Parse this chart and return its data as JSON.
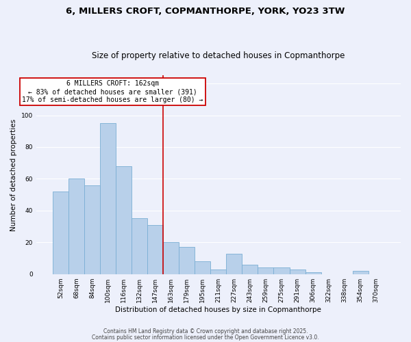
{
  "title1": "6, MILLERS CROFT, COPMANTHORPE, YORK, YO23 3TW",
  "title2": "Size of property relative to detached houses in Copmanthorpe",
  "xlabel": "Distribution of detached houses by size in Copmanthorpe",
  "ylabel": "Number of detached properties",
  "bar_labels": [
    "52sqm",
    "68sqm",
    "84sqm",
    "100sqm",
    "116sqm",
    "132sqm",
    "147sqm",
    "163sqm",
    "179sqm",
    "195sqm",
    "211sqm",
    "227sqm",
    "243sqm",
    "259sqm",
    "275sqm",
    "291sqm",
    "306sqm",
    "322sqm",
    "338sqm",
    "354sqm",
    "370sqm"
  ],
  "bar_heights": [
    52,
    60,
    56,
    95,
    68,
    35,
    31,
    20,
    17,
    8,
    3,
    13,
    6,
    4,
    4,
    3,
    1,
    0,
    0,
    2,
    0
  ],
  "bar_color": "#b8d0ea",
  "bar_edge_color": "#7aaed4",
  "vline_color": "#cc0000",
  "annotation_title": "6 MILLERS CROFT: 162sqm",
  "annotation_line1": "← 83% of detached houses are smaller (391)",
  "annotation_line2": "17% of semi-detached houses are larger (80) →",
  "annotation_box_color": "#ffffff",
  "annotation_box_edge": "#cc0000",
  "ylim": [
    0,
    125
  ],
  "yticks": [
    0,
    20,
    40,
    60,
    80,
    100,
    120
  ],
  "footnote1": "Contains HM Land Registry data © Crown copyright and database right 2025.",
  "footnote2": "Contains public sector information licensed under the Open Government Licence v3.0.",
  "bg_color": "#edf0fb",
  "grid_color": "#ffffff",
  "title1_fontsize": 9.5,
  "title2_fontsize": 8.5,
  "tick_fontsize": 6.5,
  "axis_label_fontsize": 7.5,
  "annotation_fontsize": 7,
  "footnote_fontsize": 5.5
}
